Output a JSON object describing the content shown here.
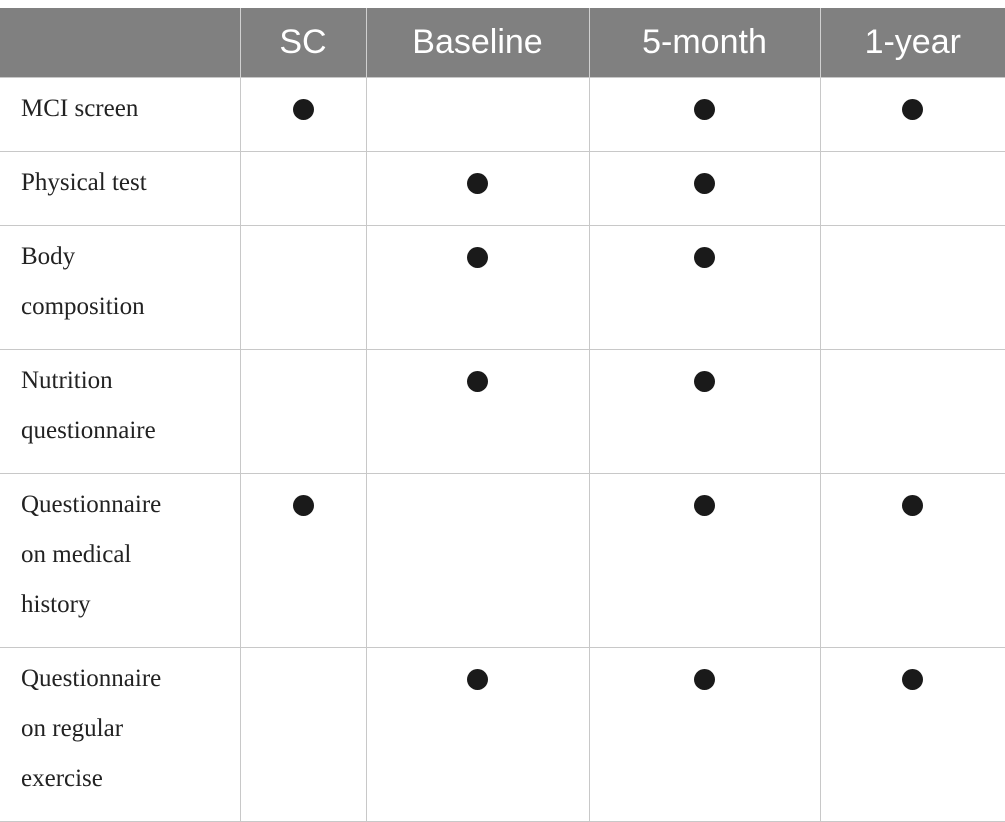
{
  "table": {
    "columns": [
      "",
      "SC",
      "Baseline",
      "5-month",
      "1-year"
    ],
    "rows": [
      {
        "label_lines": [
          "MCI screen"
        ],
        "marks": [
          true,
          false,
          true,
          true
        ]
      },
      {
        "label_lines": [
          "Physical test"
        ],
        "marks": [
          false,
          true,
          true,
          false
        ]
      },
      {
        "label_lines": [
          "Body",
          "composition"
        ],
        "marks": [
          false,
          true,
          true,
          false
        ]
      },
      {
        "label_lines": [
          "Nutrition",
          "questionnaire"
        ],
        "marks": [
          false,
          true,
          true,
          false
        ]
      },
      {
        "label_lines": [
          "Questionnaire",
          "on medical",
          "history"
        ],
        "marks": [
          true,
          false,
          true,
          true
        ]
      },
      {
        "label_lines": [
          "Questionnaire",
          "on regular",
          "exercise"
        ],
        "marks": [
          false,
          true,
          true,
          true
        ]
      }
    ],
    "mark_symbol": "filled-circle-icon"
  }
}
